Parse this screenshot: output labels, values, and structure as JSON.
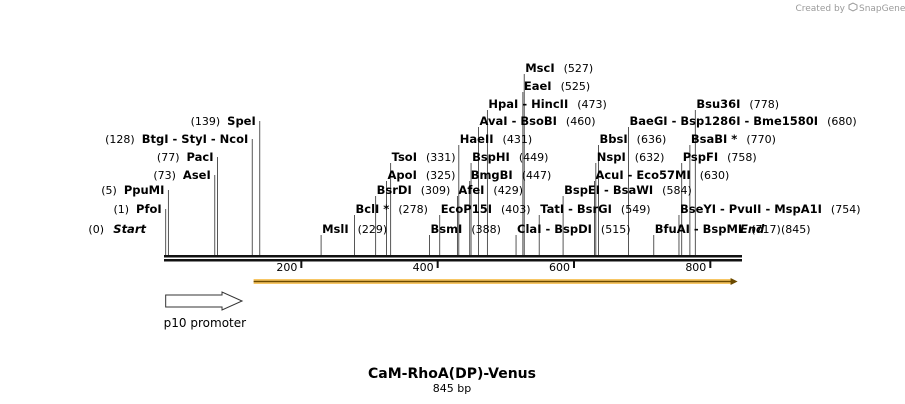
{
  "watermark": {
    "created_by": "Created by",
    "brand": "SnapGene"
  },
  "map": {
    "title": "CaM-RhoA(DP)-Venus",
    "length_label": "845 bp",
    "total_bp": 845,
    "ends": [
      {
        "label": "Start",
        "pos_label": "(0)",
        "pos": 0
      },
      {
        "label": "End",
        "pos_label": "(845)",
        "pos": 845
      }
    ],
    "ticks": [
      {
        "value": 200,
        "label": "200"
      },
      {
        "value": 400,
        "label": "400"
      },
      {
        "value": 600,
        "label": "600"
      },
      {
        "value": 800,
        "label": "800"
      }
    ],
    "left_sites": [
      {
        "text": "PfoI",
        "pos_label": "(1)",
        "pos": 1
      },
      {
        "text": "PpuMI",
        "pos_label": "(5)",
        "pos": 5
      },
      {
        "text": "AseI",
        "pos_label": "(73)",
        "pos": 73
      },
      {
        "text": "PacI",
        "pos_label": "(77)",
        "pos": 77
      },
      {
        "text": "BtgI  - StyI  - NcoI",
        "pos_label": "(128)",
        "pos": 128
      },
      {
        "text": "SpeI",
        "pos_label": "(139)",
        "pos": 139
      }
    ],
    "right_sites": [
      {
        "text": "MslI",
        "pos_label": "(229)",
        "pos": 229
      },
      {
        "text": "BclI *",
        "pos_label": "(278)",
        "pos": 278
      },
      {
        "text": "BsrDI",
        "pos_label": "(309)",
        "pos": 309
      },
      {
        "text": "ApoI",
        "pos_label": "(325)",
        "pos": 325
      },
      {
        "text": "TsoI",
        "pos_label": "(331)",
        "pos": 331
      },
      {
        "text": "BsmI",
        "pos_label": "(388)",
        "pos": 388
      },
      {
        "text": "EcoP15I",
        "pos_label": "(403)",
        "pos": 403
      },
      {
        "text": "AfeI",
        "pos_label": "(429)",
        "pos": 429
      },
      {
        "text": "HaeII",
        "pos_label": "(431)",
        "pos": 431
      },
      {
        "text": "BmgBI",
        "pos_label": "(447)",
        "pos": 447
      },
      {
        "text": "BspHI",
        "pos_label": "(449)",
        "pos": 449
      },
      {
        "text": "AvaI  - BsoBI",
        "pos_label": "(460)",
        "pos": 460
      },
      {
        "text": "HpaI  - HincII",
        "pos_label": "(473)",
        "pos": 473
      },
      {
        "text": "ClaI  - BspDI",
        "pos_label": "(515)",
        "pos": 515
      },
      {
        "text": "EaeI",
        "pos_label": "(525)",
        "pos": 525
      },
      {
        "text": "MscI",
        "pos_label": "(527)",
        "pos": 527
      },
      {
        "text": "TatI  - BsrGI",
        "pos_label": "(549)",
        "pos": 549
      },
      {
        "text": "BspEI  - BsaWI",
        "pos_label": "(584)",
        "pos": 584
      },
      {
        "text": "AcuI  - Eco57MI",
        "pos_label": "(630)",
        "pos": 630
      },
      {
        "text": "NspI",
        "pos_label": "(632)",
        "pos": 632
      },
      {
        "text": "BbsI",
        "pos_label": "(636)",
        "pos": 636
      },
      {
        "text": "BaeGI  - Bsp1286I  - Bme1580I",
        "pos_label": "(680)",
        "pos": 680
      },
      {
        "text": "BfuAI  - BspMI",
        "pos_label": "(717)",
        "pos": 717
      },
      {
        "text": "BseYI  - PvuII  - MspA1I",
        "pos_label": "(754)",
        "pos": 754
      },
      {
        "text": "PspFI",
        "pos_label": "(758)",
        "pos": 758
      },
      {
        "text": "BsaBI *",
        "pos_label": "(770)",
        "pos": 770
      },
      {
        "text": "Bsu36I",
        "pos_label": "(778)",
        "pos": 778
      }
    ],
    "features": [
      {
        "name": "p10 promoter",
        "start": 1,
        "end": 113,
        "strand": "forward",
        "color": "#ffffff",
        "stroke": "#333333"
      },
      {
        "name": "",
        "start": 130,
        "end": 840,
        "strand": "forward",
        "color": "#f0a000",
        "stroke": "#333333"
      }
    ]
  }
}
